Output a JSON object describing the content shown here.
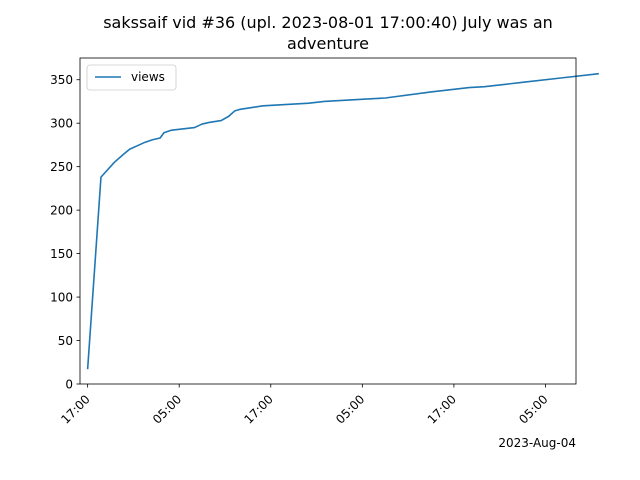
{
  "chart_data": {
    "type": "line",
    "title_lines": [
      "sakssaif vid #36 (upl. 2023-08-01 17:00:40) July was an",
      "adventure"
    ],
    "xlabel": "",
    "ylabel": "",
    "x_offset_text": "2023-Aug-04",
    "x_tick_labels": [
      "17:00",
      "05:00",
      "17:00",
      "05:00",
      "17:00",
      "05:00"
    ],
    "x_tick_times": [
      "2023-08-01 17:00",
      "2023-08-02 05:00",
      "2023-08-02 17:00",
      "2023-08-03 05:00",
      "2023-08-03 17:00",
      "2023-08-04 05:00"
    ],
    "xlim": [
      "2023-08-01 16:00",
      "2023-08-04 09:00"
    ],
    "ylim": [
      0,
      375
    ],
    "y_ticks": [
      0,
      50,
      100,
      150,
      200,
      250,
      300,
      350
    ],
    "grid": false,
    "legend": {
      "position": "upper-left"
    },
    "series": [
      {
        "name": "views",
        "color": "#1f77b4",
        "points": [
          [
            "2023-08-01 17:00",
            17
          ],
          [
            "2023-08-01 18:45",
            238
          ],
          [
            "2023-08-01 20:30",
            255
          ],
          [
            "2023-08-01 21:40",
            264
          ],
          [
            "2023-08-01 22:30",
            270
          ],
          [
            "2023-08-01 23:30",
            274
          ],
          [
            "2023-08-02 00:30",
            278
          ],
          [
            "2023-08-02 01:30",
            281
          ],
          [
            "2023-08-02 02:30",
            283
          ],
          [
            "2023-08-02 03:00",
            289
          ],
          [
            "2023-08-02 04:00",
            292
          ],
          [
            "2023-08-02 05:00",
            293
          ],
          [
            "2023-08-02 06:00",
            294
          ],
          [
            "2023-08-02 07:00",
            295
          ],
          [
            "2023-08-02 08:00",
            299
          ],
          [
            "2023-08-02 09:00",
            301
          ],
          [
            "2023-08-02 10:30",
            303
          ],
          [
            "2023-08-02 11:30",
            308
          ],
          [
            "2023-08-02 12:15",
            314
          ],
          [
            "2023-08-02 13:00",
            316
          ],
          [
            "2023-08-02 14:30",
            318
          ],
          [
            "2023-08-02 16:00",
            320
          ],
          [
            "2023-08-02 18:00",
            321
          ],
          [
            "2023-08-02 20:00",
            322
          ],
          [
            "2023-08-02 22:00",
            323
          ],
          [
            "2023-08-03 00:00",
            325
          ],
          [
            "2023-08-03 04:00",
            327
          ],
          [
            "2023-08-03 08:00",
            329
          ],
          [
            "2023-08-03 14:00",
            336
          ],
          [
            "2023-08-03 19:00",
            341
          ],
          [
            "2023-08-03 21:00",
            342
          ],
          [
            "2023-08-04 02:00",
            347
          ],
          [
            "2023-08-04 07:00",
            352
          ],
          [
            "2023-08-04 12:00",
            357
          ]
        ]
      }
    ]
  }
}
